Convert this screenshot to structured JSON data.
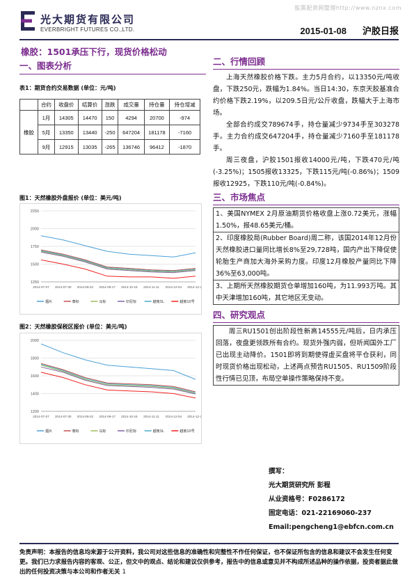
{
  "watermark": "股票配资网整理http://www.nznx.com",
  "header": {
    "company_cn": "光大期货有限公司",
    "company_en": "EVERBRIGHT FUTURES CO.,LTD.",
    "date": "2015-01-08",
    "report_type": "沪胶日报",
    "brand_color": "#2a2a55",
    "accent_color": "#7b2c8e"
  },
  "headline": "橡胶：1501承压下行，现货价格松动",
  "section1": {
    "title": "一、图表分析",
    "table_caption": "表1：期货合约交易数据  (单位：元/吨)",
    "table_headers": [
      "",
      "合约",
      "收盘价",
      "结算价",
      "涨跌",
      "成交量",
      "持仓量",
      "持仓增减"
    ],
    "row_group_label": "橡胶",
    "rows": [
      [
        "1月",
        "14305",
        "14470",
        "150",
        "4294",
        "20700",
        "-974"
      ],
      [
        "5月",
        "13350",
        "13440",
        "-250",
        "647204",
        "181178",
        "-7160"
      ],
      [
        "9月",
        "12915",
        "13035",
        "-265",
        "136746",
        "96412",
        "-1870"
      ]
    ],
    "chart1_caption": "图1：天然橡胶外盘报价  (单位：美元/吨)",
    "chart2_caption": "图2：天然橡胶保税区报价  (单位：美元/吨)"
  },
  "chart_data": [
    {
      "type": "line",
      "title": "",
      "xlabel": "",
      "ylabel": "",
      "ylim": [
        1250,
        2250
      ],
      "yticks": [
        "2250",
        "2000",
        "1750",
        "1500",
        "1250"
      ],
      "x": [
        "2014-07-07",
        "2014-07-30",
        "2014-08-22",
        "2014-09-17",
        "2014-10-16",
        "2014-11-11",
        "2014-12-04",
        "2014-12-29"
      ],
      "series": [
        {
          "name": "烟片",
          "color": "#4aa0d8",
          "values": [
            1900,
            1840,
            1760,
            1680,
            1640,
            1620,
            1600,
            1660
          ]
        },
        {
          "name": "泰标",
          "color": "#c0504d",
          "values": [
            1700,
            1640,
            1560,
            1460,
            1440,
            1420,
            1410,
            1440
          ]
        },
        {
          "name": "马标",
          "color": "#9bbb59",
          "values": [
            1680,
            1620,
            1540,
            1440,
            1420,
            1400,
            1390,
            1420
          ]
        },
        {
          "name": "印尼标",
          "color": "#8064a2",
          "values": [
            1670,
            1610,
            1530,
            1430,
            1410,
            1390,
            1380,
            1410
          ]
        },
        {
          "name": "越南3L",
          "color": "#4bacc6",
          "values": [
            1690,
            1630,
            1550,
            1450,
            1430,
            1410,
            1400,
            1430
          ]
        },
        {
          "name": "越南10号",
          "color": "#f02020",
          "values": [
            1560,
            1500,
            1430,
            1330,
            1320,
            1320,
            1300,
            1330
          ]
        }
      ]
    },
    {
      "type": "line",
      "title": "",
      "xlabel": "",
      "ylabel": "",
      "ylim": [
        1200,
        2000
      ],
      "yticks": [
        "2000",
        "1800",
        "1600",
        "1400",
        "1200"
      ],
      "x": [
        "2014-07-07",
        "2014-07-30",
        "2014-08-22",
        "2014-09-17",
        "2014-10-16",
        "2014-11-11",
        "2014-12-04",
        "2014-12-29"
      ],
      "series": [
        {
          "name": "烟片",
          "color": "#4aa0d8",
          "values": [
            1960,
            1860,
            1780,
            1720,
            1700,
            1680,
            1660,
            1560
          ]
        },
        {
          "name": "泰标",
          "color": "#c0504d",
          "values": [
            1740,
            1670,
            1580,
            1520,
            1510,
            1500,
            1480,
            1420
          ]
        },
        {
          "name": "马标",
          "color": "#9bbb59",
          "values": [
            1720,
            1650,
            1560,
            1500,
            1490,
            1480,
            1460,
            1400
          ]
        },
        {
          "name": "印尼标",
          "color": "#8064a2",
          "values": [
            1700,
            1640,
            1550,
            1490,
            1480,
            1470,
            1450,
            1395
          ]
        },
        {
          "name": "越南3L",
          "color": "#4bacc6",
          "values": [
            1730,
            1660,
            1570,
            1510,
            1500,
            1490,
            1470,
            1410
          ]
        },
        {
          "name": "越南10号",
          "color": "#f02020",
          "values": [
            1640,
            1580,
            1500,
            1440,
            1430,
            1420,
            1400,
            1350
          ]
        }
      ]
    }
  ],
  "section2": {
    "title": "二、行情回顾",
    "p1": "上海天然橡胶价格下跌。主力5月合约，以13350元/吨收盘，下跌250元，跌幅为1.84%。当日14:30，东京天胶基准合约价格下跌2.19%，以209.5日元/公斤收盘，跌幅大于上海市场。",
    "p2": "全部合约成交789674手，持仓量减少9734手至303278手。主力合约成交647204手，持仓量减少7160手至181178手。",
    "p3": "周三夜盘，沪胶1501报收14000元/吨，下跌470元/吨(-3.25%)；1505报收13325，下跌115元/吨(-0.86%)；1509报收12925，下跌110元/吨(-0.84%)。"
  },
  "section3": {
    "title": "三、市场焦点",
    "items": [
      "1、美国NYMEX 2月原油期货价格收盘上涨0.72美元，涨幅1.50%，报48.65美元/桶。",
      "2、印度橡胶局(Rubber Board)周二称，该国2014年12月份天然橡胶进口量同比增长8%至29,728吨，国内产出下降促使轮胎生产商加大海外采购力度。印度12月橡胶产量同比下降36%至63,000吨。",
      "3、上期所天然橡胶期货仓单增加160吨，为11.993万吨。其中天津增加160吨，其它地区无变动。"
    ]
  },
  "section4": {
    "title": "四、研究观点",
    "text": "周三RU1501创出阶段性新高14555元/吨后，日内承压回落，夜盘更领跌所有合约。现货外强内弱，但听闻国外工厂已出现主动降价。1501即将到期使得虚买盘将平仓获利，同时现货价格出现松动，上述两点预告RU1505、RU1509阶段性行情已见顶，布局空单操作策略保持不变。"
  },
  "author": {
    "label": "撰写：",
    "org": "光大期货研究所 彭程",
    "license": "从业资格号：F0286172",
    "phone": "固定电话：021-22169060-237",
    "email": "Email:pengcheng1@ebfcn.com.cn"
  },
  "disclaimer": "免责声明：本报告的信息均来源于公开资料，我公司对这些信息的准确性和完整性不作任何保证，也不保证所包含的信息和建议不会发生任何变更。我们已力求报告内容的客观、公正，但文中的观点、结论和建议仅供参考，报告中的信息或意见并不构成所述品种的操作依据，投资者据此做出的任何投资决策与本公司和作者无关",
  "page_number": "1"
}
